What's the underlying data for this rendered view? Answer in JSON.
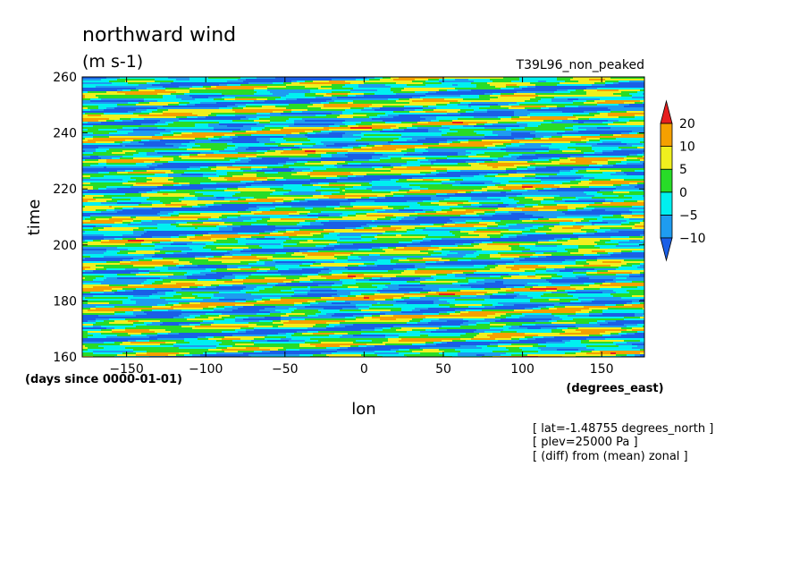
{
  "chart_data": {
    "type": "heatmap",
    "title": "northward wind",
    "units": "(m s-1)",
    "run_label": "T39L96_non_peaked",
    "xlabel": "lon",
    "xunits": "(degrees_east)",
    "ylabel": "time",
    "yunits": "(days since 0000-01-01)",
    "xlim": [
      -178,
      177
    ],
    "ylim": [
      160,
      260
    ],
    "x_ticks": [
      -150,
      -100,
      -50,
      0,
      50,
      100,
      150
    ],
    "x_tick_labels": [
      "−150",
      "−100",
      "−50",
      "0",
      "50",
      "100",
      "150"
    ],
    "y_ticks": [
      160,
      180,
      200,
      220,
      240,
      260
    ],
    "y_tick_labels": [
      "160",
      "180",
      "200",
      "220",
      "240",
      "260"
    ],
    "colorbar": {
      "levels": [
        -10,
        -5,
        0,
        5,
        10,
        20
      ],
      "level_labels": [
        "−10",
        "−5",
        "0",
        "5",
        "10",
        "20"
      ],
      "colors": [
        "#1a5fe6",
        "#1e9cf0",
        "#00f0f0",
        "#28dc28",
        "#f0f01e",
        "#f5a000",
        "#e61e1e"
      ],
      "extend": "both"
    },
    "notes": [
      "[ lat=-1.48755 degrees_north ]",
      "[ plev=25000 Pa ]",
      "[ (diff) from (mean) zonal ]"
    ]
  }
}
